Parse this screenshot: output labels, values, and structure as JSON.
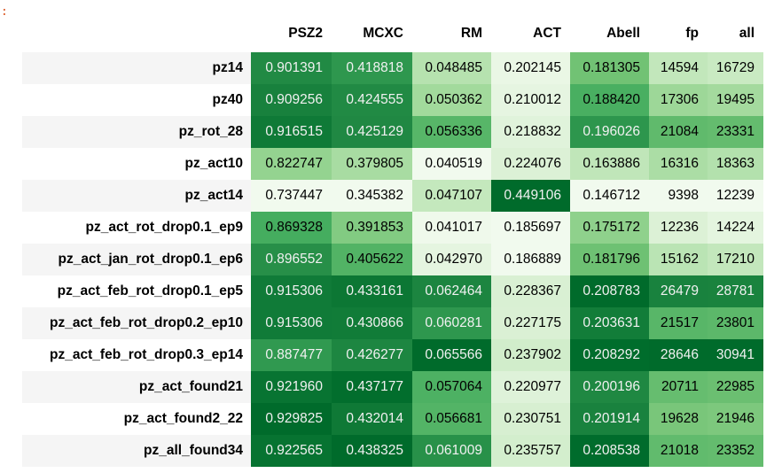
{
  "prompt_marker": ":",
  "table": {
    "index_header": "",
    "columns": [
      "PSZ2",
      "MCXC",
      "RM",
      "ACT",
      "Abell",
      "fp",
      "all"
    ],
    "rows": [
      {
        "label": "pz14",
        "values": [
          "0.901391",
          "0.418818",
          "0.048485",
          "0.202145",
          "0.181305",
          "14594",
          "16729"
        ]
      },
      {
        "label": "pz40",
        "values": [
          "0.909256",
          "0.424555",
          "0.050362",
          "0.210012",
          "0.188420",
          "17306",
          "19495"
        ]
      },
      {
        "label": "pz_rot_28",
        "values": [
          "0.916515",
          "0.425129",
          "0.056336",
          "0.218832",
          "0.196026",
          "21084",
          "23331"
        ]
      },
      {
        "label": "pz_act10",
        "values": [
          "0.822747",
          "0.379805",
          "0.040519",
          "0.224076",
          "0.163886",
          "16316",
          "18363"
        ]
      },
      {
        "label": "pz_act14",
        "values": [
          "0.737447",
          "0.345382",
          "0.047107",
          "0.449106",
          "0.146712",
          "9398",
          "12239"
        ]
      },
      {
        "label": "pz_act_rot_drop0.1_ep9",
        "values": [
          "0.869328",
          "0.391853",
          "0.041017",
          "0.185697",
          "0.175172",
          "12236",
          "14224"
        ]
      },
      {
        "label": "pz_act_jan_rot_drop0.1_ep6",
        "values": [
          "0.896552",
          "0.405622",
          "0.042970",
          "0.186889",
          "0.181796",
          "15162",
          "17210"
        ]
      },
      {
        "label": "pz_act_feb_rot_drop0.1_ep5",
        "values": [
          "0.915306",
          "0.433161",
          "0.062464",
          "0.228367",
          "0.208783",
          "26479",
          "28781"
        ]
      },
      {
        "label": "pz_act_feb_rot_drop0.2_ep10",
        "values": [
          "0.915306",
          "0.430866",
          "0.060281",
          "0.227175",
          "0.203631",
          "21517",
          "23801"
        ]
      },
      {
        "label": "pz_act_feb_rot_drop0.3_ep14",
        "values": [
          "0.887477",
          "0.426277",
          "0.065566",
          "0.237902",
          "0.208292",
          "28646",
          "30941"
        ]
      },
      {
        "label": "pz_act_found21",
        "values": [
          "0.921960",
          "0.437177",
          "0.057064",
          "0.220977",
          "0.200196",
          "20711",
          "22985"
        ]
      },
      {
        "label": "pz_act_found2_22",
        "values": [
          "0.929825",
          "0.432014",
          "0.056681",
          "0.230751",
          "0.201914",
          "19628",
          "21946"
        ]
      },
      {
        "label": "pz_all_found34",
        "values": [
          "0.922565",
          "0.438325",
          "0.061009",
          "0.235757",
          "0.208538",
          "21018",
          "23352"
        ]
      }
    ]
  },
  "colormap": {
    "name": "Greens",
    "light": "#f7fcf5",
    "dark": "#00441b"
  }
}
